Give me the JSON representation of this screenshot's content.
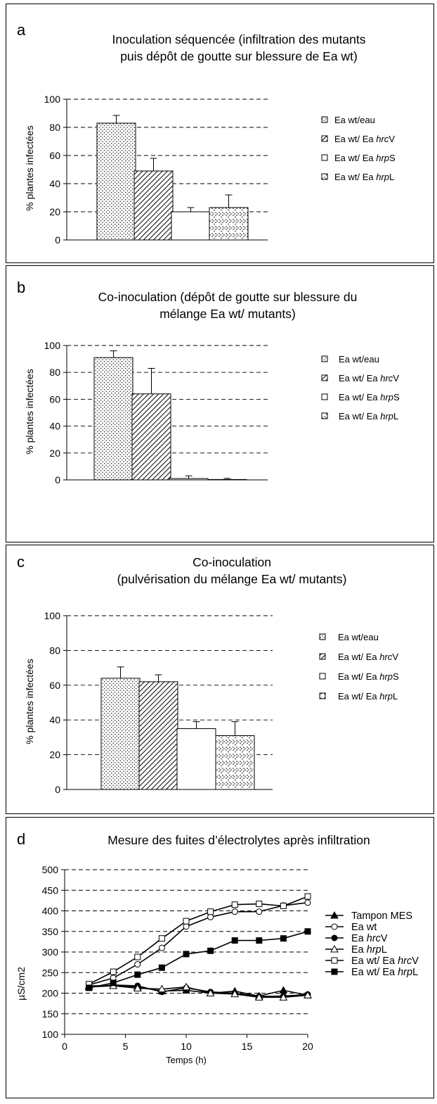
{
  "bar_legend_icons": [
    "dots-pattern-icon",
    "diagonal-hatch-icon",
    "empty-square-icon",
    "diamond-dots-pattern-icon"
  ],
  "line_legend_icons": [
    "filled-triangle-icon",
    "open-circle-icon",
    "filled-circle-icon",
    "open-triangle-icon",
    "open-square-icon",
    "filled-square-icon"
  ],
  "chart_data": [
    {
      "type": "bar",
      "panel_letter": "a",
      "title_lines": [
        "Inoculation séquencée (infiltration des mutants",
        "puis dépôt de goutte sur blessure de Ea wt)"
      ],
      "ylabel": "% plantes infectées",
      "xlabel": "",
      "ylim": [
        0,
        100
      ],
      "yticks": [
        0,
        20,
        40,
        60,
        80,
        100
      ],
      "grid": true,
      "legend_position": "right",
      "categories": [
        {
          "prefix": "Ea wt/eau",
          "italic": "",
          "suffix": ""
        },
        {
          "prefix": "Ea wt/ Ea ",
          "italic": "hrc",
          "suffix": "V"
        },
        {
          "prefix": "Ea wt/ Ea ",
          "italic": "hrp",
          "suffix": "S"
        },
        {
          "prefix": "Ea wt/ Ea ",
          "italic": "hrp",
          "suffix": "L"
        }
      ],
      "values": [
        83,
        49,
        20,
        23
      ],
      "errors": [
        5.5,
        9,
        3,
        9
      ],
      "patterns": [
        "dots",
        "hatch",
        "none",
        "diamonds"
      ]
    },
    {
      "type": "bar",
      "panel_letter": "b",
      "title_lines": [
        "Co-inoculation (dépôt de goutte sur blessure du",
        "mélange Ea wt/ mutants)"
      ],
      "ylabel": "% plantes infectées",
      "xlabel": "",
      "ylim": [
        0,
        100
      ],
      "yticks": [
        0,
        20,
        40,
        60,
        80,
        100
      ],
      "grid": true,
      "legend_position": "right",
      "categories": [
        {
          "prefix": "Ea wt/eau",
          "italic": "",
          "suffix": ""
        },
        {
          "prefix": "Ea wt/ Ea ",
          "italic": "hrc",
          "suffix": "V"
        },
        {
          "prefix": "Ea wt/ Ea ",
          "italic": "hrp",
          "suffix": "S"
        },
        {
          "prefix": "Ea wt/ Ea ",
          "italic": "hrp",
          "suffix": "L"
        }
      ],
      "values": [
        91,
        64,
        1,
        0.3
      ],
      "errors": [
        5,
        19,
        2,
        0.8
      ],
      "patterns": [
        "dots",
        "hatch",
        "none",
        "diamonds"
      ]
    },
    {
      "type": "bar",
      "panel_letter": "c",
      "title_lines": [
        "Co-inoculation",
        "(pulvérisation du mélange Ea wt/ mutants)"
      ],
      "ylabel": "% plantes infectées",
      "xlabel": "",
      "ylim": [
        0,
        100
      ],
      "yticks": [
        0,
        20,
        40,
        60,
        80,
        100
      ],
      "grid": true,
      "legend_position": "right",
      "categories": [
        {
          "prefix": "Ea wt/eau",
          "italic": "",
          "suffix": ""
        },
        {
          "prefix": "Ea wt/ Ea ",
          "italic": "hrc",
          "suffix": "V"
        },
        {
          "prefix": "Ea wt/ Ea ",
          "italic": "hrp",
          "suffix": "S"
        },
        {
          "prefix": "Ea wt/ Ea ",
          "italic": "hrp",
          "suffix": "L"
        }
      ],
      "values": [
        64,
        62,
        35,
        31
      ],
      "errors": [
        6.5,
        4,
        4,
        8
      ],
      "patterns": [
        "dots",
        "hatch",
        "none",
        "diamonds"
      ]
    },
    {
      "type": "line",
      "panel_letter": "d",
      "title_lines": [
        "Mesure des fuites d’électrolytes après infiltration"
      ],
      "xlabel": "Temps (h)",
      "ylabel": "µS/cm2",
      "xlim": [
        0,
        20
      ],
      "ylim": [
        100,
        500
      ],
      "xticks": [
        0,
        5,
        10,
        15,
        20
      ],
      "yticks": [
        100,
        150,
        200,
        250,
        300,
        350,
        400,
        450,
        500
      ],
      "grid": true,
      "legend_position": "right",
      "x": [
        2,
        4,
        6,
        8,
        10,
        12,
        14,
        16,
        18,
        20
      ],
      "series": [
        {
          "prefix": "Tampon MES",
          "italic": "",
          "suffix": "",
          "marker": "triangle",
          "fill": "#000000",
          "values": [
            215,
            218,
            215,
            205,
            207,
            200,
            205,
            193,
            207,
            195
          ]
        },
        {
          "prefix": "Ea wt",
          "italic": "",
          "suffix": "",
          "marker": "circle",
          "fill": "#ffffff",
          "values": [
            220,
            237,
            270,
            310,
            362,
            385,
            398,
            398,
            413,
            420
          ]
        },
        {
          "prefix": "Ea ",
          "italic": "hrc",
          "suffix": "V",
          "marker": "circle",
          "fill": "#000000",
          "values": [
            215,
            220,
            218,
            203,
            213,
            203,
            200,
            192,
            193,
            197
          ]
        },
        {
          "prefix": "Ea ",
          "italic": "hrp",
          "suffix": "L",
          "marker": "triangle",
          "fill": "#ffffff",
          "values": [
            218,
            218,
            212,
            210,
            215,
            200,
            198,
            190,
            190,
            195
          ]
        },
        {
          "prefix": "Ea wt/ Ea ",
          "italic": "hrc",
          "suffix": "V",
          "marker": "square",
          "fill": "#ffffff",
          "values": [
            222,
            252,
            288,
            333,
            375,
            398,
            415,
            417,
            412,
            435
          ]
        },
        {
          "prefix": "Ea wt/ Ea ",
          "italic": "hrp",
          "suffix": "L",
          "marker": "square",
          "fill": "#000000",
          "values": [
            213,
            225,
            245,
            262,
            295,
            303,
            328,
            328,
            333,
            350
          ]
        }
      ]
    }
  ]
}
